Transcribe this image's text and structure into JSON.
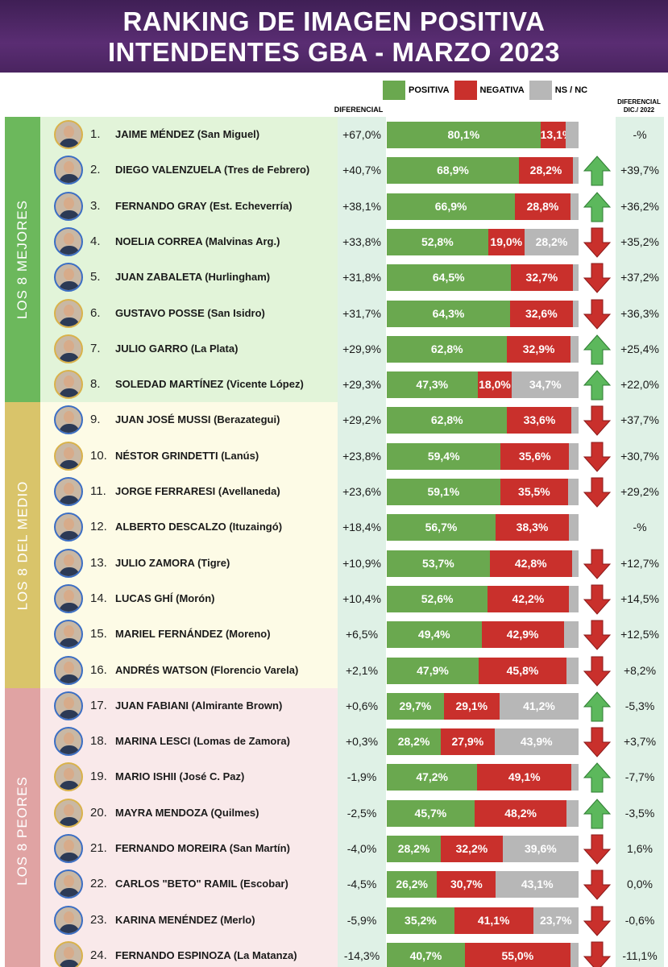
{
  "title": {
    "line1": "RANKING DE IMAGEN POSITIVA",
    "line2": "INTENDENTES GBA - MARZO 2023"
  },
  "legend": {
    "positive": "POSITIVA",
    "negative": "NEGATIVA",
    "nsnc": "NS / NC"
  },
  "columns": {
    "diferencial": "DIFERENCIAL",
    "diferencial_dic_line1": "DIFERENCIAL",
    "diferencial_dic_line2": "DIC./ 2022"
  },
  "groups": [
    {
      "label": "LOS 8 MEJORES",
      "color": "#6cb85c",
      "bg": "#e2f4d9"
    },
    {
      "label": "LOS 8 DEL MEDIO",
      "color": "#d9c46a",
      "bg": "#fdfbe6"
    },
    {
      "label": "LOS 8 PEORES",
      "color": "#e0a3a3",
      "bg": "#f9e9ea"
    }
  ],
  "colors": {
    "positive": "#6aa84f",
    "negative": "#c9302c",
    "nsnc": "#b7b7b7",
    "arrow_up": "#5cb85c",
    "arrow_down": "#c9302c"
  },
  "chart_data": {
    "type": "bar",
    "stacked": true,
    "orientation": "horizontal",
    "title": "RANKING DE IMAGEN POSITIVA INTENDENTES GBA - MARZO 2023",
    "series_names": [
      "POSITIVA",
      "NEGATIVA",
      "NS / NC"
    ],
    "rows": [
      {
        "rank": "1.",
        "name": "JAIME MÉNDEZ (San Miguel)",
        "diferencial": "+67,0%",
        "positiva": 80.1,
        "negativa": 13.1,
        "pos_label": "80,1%",
        "neg_label": "13,1%",
        "ns_label": "",
        "trend": "none",
        "dif_dic": "-%"
      },
      {
        "rank": "2.",
        "name": "DIEGO VALENZUELA (Tres de Febrero)",
        "diferencial": "+40,7%",
        "positiva": 68.9,
        "negativa": 28.2,
        "pos_label": "68,9%",
        "neg_label": "28,2%",
        "ns_label": "",
        "trend": "up",
        "dif_dic": "+39,7%"
      },
      {
        "rank": "3.",
        "name": "FERNANDO GRAY (Est. Echeverría)",
        "diferencial": "+38,1%",
        "positiva": 66.9,
        "negativa": 28.8,
        "pos_label": "66,9%",
        "neg_label": "28,8%",
        "ns_label": "",
        "trend": "up",
        "dif_dic": "+36,2%"
      },
      {
        "rank": "4.",
        "name": "NOELIA CORREA (Malvinas Arg.)",
        "diferencial": "+33,8%",
        "positiva": 52.8,
        "negativa": 19.0,
        "pos_label": "52,8%",
        "neg_label": "19,0%",
        "ns_label": "28,2%",
        "trend": "down",
        "dif_dic": "+35,2%"
      },
      {
        "rank": "5.",
        "name": "JUAN ZABALETA (Hurlingham)",
        "diferencial": "+31,8%",
        "positiva": 64.5,
        "negativa": 32.7,
        "pos_label": "64,5%",
        "neg_label": "32,7%",
        "ns_label": "",
        "trend": "down",
        "dif_dic": "+37,2%"
      },
      {
        "rank": "6.",
        "name": "GUSTAVO POSSE (San Isidro)",
        "diferencial": "+31,7%",
        "positiva": 64.3,
        "negativa": 32.6,
        "pos_label": "64,3%",
        "neg_label": "32,6%",
        "ns_label": "",
        "trend": "down",
        "dif_dic": "+36,3%"
      },
      {
        "rank": "7.",
        "name": "JULIO GARRO (La Plata)",
        "diferencial": "+29,9%",
        "positiva": 62.8,
        "negativa": 32.9,
        "pos_label": "62,8%",
        "neg_label": "32,9%",
        "ns_label": "",
        "trend": "up",
        "dif_dic": "+25,4%"
      },
      {
        "rank": "8.",
        "name": "SOLEDAD MARTÍNEZ (Vicente López)",
        "diferencial": "+29,3%",
        "positiva": 47.3,
        "negativa": 18.0,
        "pos_label": "47,3%",
        "neg_label": "18,0%",
        "ns_label": "34,7%",
        "trend": "up",
        "dif_dic": "+22,0%"
      },
      {
        "rank": "9.",
        "name": "JUAN JOSÉ MUSSI (Berazategui)",
        "diferencial": "+29,2%",
        "positiva": 62.8,
        "negativa": 33.6,
        "pos_label": "62,8%",
        "neg_label": "33,6%",
        "ns_label": "",
        "trend": "down",
        "dif_dic": "+37,7%"
      },
      {
        "rank": "10.",
        "name": "NÉSTOR GRINDETTI (Lanús)",
        "diferencial": "+23,8%",
        "positiva": 59.4,
        "negativa": 35.6,
        "pos_label": "59,4%",
        "neg_label": "35,6%",
        "ns_label": "",
        "trend": "down",
        "dif_dic": "+30,7%"
      },
      {
        "rank": "11.",
        "name": "JORGE FERRARESI (Avellaneda)",
        "diferencial": "+23,6%",
        "positiva": 59.1,
        "negativa": 35.5,
        "pos_label": "59,1%",
        "neg_label": "35,5%",
        "ns_label": "",
        "trend": "down",
        "dif_dic": "+29,2%"
      },
      {
        "rank": "12.",
        "name": "ALBERTO DESCALZO (Ituzaingó)",
        "diferencial": "+18,4%",
        "positiva": 56.7,
        "negativa": 38.3,
        "pos_label": "56,7%",
        "neg_label": "38,3%",
        "ns_label": "",
        "trend": "none",
        "dif_dic": "-%"
      },
      {
        "rank": "13.",
        "name": "JULIO ZAMORA (Tigre)",
        "diferencial": "+10,9%",
        "positiva": 53.7,
        "negativa": 42.8,
        "pos_label": "53,7%",
        "neg_label": "42,8%",
        "ns_label": "",
        "trend": "down",
        "dif_dic": "+12,7%"
      },
      {
        "rank": "14.",
        "name": "LUCAS GHÍ (Morón)",
        "diferencial": "+10,4%",
        "positiva": 52.6,
        "negativa": 42.2,
        "pos_label": "52,6%",
        "neg_label": "42,2%",
        "ns_label": "",
        "trend": "down",
        "dif_dic": "+14,5%"
      },
      {
        "rank": "15.",
        "name": "MARIEL FERNÁNDEZ (Moreno)",
        "diferencial": "+6,5%",
        "positiva": 49.4,
        "negativa": 42.9,
        "pos_label": "49,4%",
        "neg_label": "42,9%",
        "ns_label": "",
        "trend": "down",
        "dif_dic": "+12,5%"
      },
      {
        "rank": "16.",
        "name": "ANDRÉS WATSON (Florencio Varela)",
        "diferencial": "+2,1%",
        "positiva": 47.9,
        "negativa": 45.8,
        "pos_label": "47,9%",
        "neg_label": "45,8%",
        "ns_label": "",
        "trend": "down",
        "dif_dic": "+8,2%"
      },
      {
        "rank": "17.",
        "name": "JUAN FABIANI (Almirante Brown)",
        "diferencial": "+0,6%",
        "positiva": 29.7,
        "negativa": 29.1,
        "pos_label": "29,7%",
        "neg_label": "29,1%",
        "ns_label": "41,2%",
        "trend": "up",
        "dif_dic": "-5,3%"
      },
      {
        "rank": "18.",
        "name": "MARINA LESCI (Lomas de Zamora)",
        "diferencial": "+0,3%",
        "positiva": 28.2,
        "negativa": 27.9,
        "pos_label": "28,2%",
        "neg_label": "27,9%",
        "ns_label": "43,9%",
        "trend": "down",
        "dif_dic": "+3,7%"
      },
      {
        "rank": "19.",
        "name": "MARIO ISHII (José C. Paz)",
        "diferencial": "-1,9%",
        "positiva": 47.2,
        "negativa": 49.1,
        "pos_label": "47,2%",
        "neg_label": "49,1%",
        "ns_label": "",
        "trend": "up",
        "dif_dic": "-7,7%"
      },
      {
        "rank": "20.",
        "name": "MAYRA MENDOZA (Quilmes)",
        "diferencial": "-2,5%",
        "positiva": 45.7,
        "negativa": 48.2,
        "pos_label": "45,7%",
        "neg_label": "48,2%",
        "ns_label": "",
        "trend": "up",
        "dif_dic": "-3,5%"
      },
      {
        "rank": "21.",
        "name": "FERNANDO MOREIRA (San Martín)",
        "diferencial": "-4,0%",
        "positiva": 28.2,
        "negativa": 32.2,
        "pos_label": "28,2%",
        "neg_label": "32,2%",
        "ns_label": "39,6%",
        "trend": "down",
        "dif_dic": "1,6%"
      },
      {
        "rank": "22.",
        "name": "CARLOS \"BETO\" RAMIL (Escobar)",
        "diferencial": "-4,5%",
        "positiva": 26.2,
        "negativa": 30.7,
        "pos_label": "26,2%",
        "neg_label": "30,7%",
        "ns_label": "43,1%",
        "trend": "down",
        "dif_dic": "0,0%"
      },
      {
        "rank": "23.",
        "name": "KARINA MENÉNDEZ (Merlo)",
        "diferencial": "-5,9%",
        "positiva": 35.2,
        "negativa": 41.1,
        "pos_label": "35,2%",
        "neg_label": "41,1%",
        "ns_label": "23,7%",
        "trend": "down",
        "dif_dic": "-0,6%"
      },
      {
        "rank": "24.",
        "name": "FERNANDO ESPINOZA (La Matanza)",
        "diferencial": "-14,3%",
        "positiva": 40.7,
        "negativa": 55.0,
        "pos_label": "40,7%",
        "neg_label": "55,0%",
        "ns_label": "",
        "trend": "down",
        "dif_dic": "-11,1%"
      }
    ]
  }
}
